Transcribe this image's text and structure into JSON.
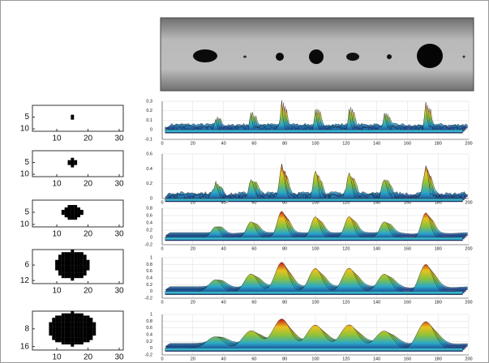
{
  "panels": [
    {
      "kernel": {
        "yticks": [
          5,
          10
        ],
        "xticks": [
          10,
          20,
          30
        ]
      },
      "surface": {
        "yticks": [
          -0.1,
          0,
          0.1,
          0.2,
          0.3
        ],
        "xticks": [
          0,
          20,
          40,
          60,
          80,
          100,
          120,
          140,
          160,
          180,
          200
        ]
      }
    },
    {
      "kernel": {
        "yticks": [
          5,
          10
        ],
        "xticks": [
          10,
          20,
          30
        ]
      },
      "surface": {
        "yticks": [
          0,
          0.2,
          0.4,
          0.6
        ],
        "xticks": [
          0,
          20,
          40,
          60,
          80,
          100,
          120,
          140,
          160,
          180,
          200
        ]
      }
    },
    {
      "kernel": {
        "yticks": [
          5,
          10
        ],
        "xticks": [
          10,
          20,
          30
        ]
      },
      "surface": {
        "yticks": [
          -0.2,
          0,
          0.2,
          0.4,
          0.6,
          0.8
        ],
        "xticks": [
          0,
          20,
          40,
          60,
          80,
          100,
          120,
          140,
          160,
          180,
          200
        ]
      }
    },
    {
      "kernel": {
        "yticks": [
          6,
          12
        ],
        "xticks": [
          10,
          20,
          30
        ]
      },
      "surface": {
        "yticks": [
          -0.2,
          0,
          0.2,
          0.4,
          0.6,
          0.8,
          1
        ],
        "xticks": [
          0,
          20,
          40,
          60,
          80,
          100,
          120,
          140,
          160,
          180,
          200
        ]
      }
    },
    {
      "kernel": {
        "yticks": [
          8,
          16
        ],
        "xticks": [
          10,
          20,
          30
        ]
      },
      "surface": {
        "yticks": [
          -0.2,
          0,
          0.2,
          0.4,
          0.6,
          0.8,
          1
        ],
        "xticks": [
          0,
          20,
          40,
          60,
          80,
          100,
          120,
          140,
          160,
          180,
          200
        ]
      }
    }
  ]
}
